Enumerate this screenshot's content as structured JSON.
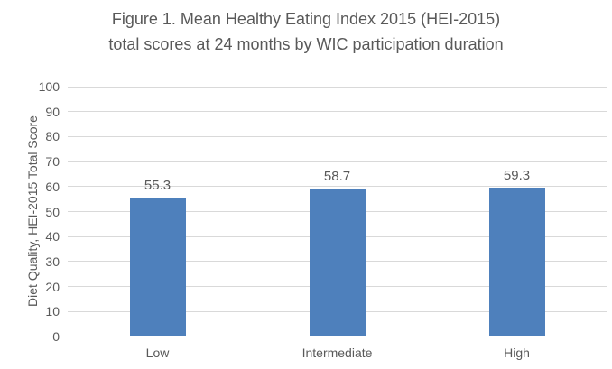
{
  "figure": {
    "title_line1": "Figure 1. Mean Healthy Eating Index 2015 (HEI-2015)",
    "title_line2": "total scores at 24 months by WIC participation duration"
  },
  "chart_data": {
    "type": "bar",
    "title": "Figure 1. Mean Healthy Eating Index 2015 (HEI-2015) total scores at 24 months by WIC participation duration",
    "categories": [
      "Low",
      "Intermediate",
      "High"
    ],
    "values": [
      55.3,
      58.7,
      59.3
    ],
    "value_labels": [
      "55.3",
      "58.7",
      "59.3"
    ],
    "xlabel": "",
    "ylabel": "Diet Quality, HEI-2015 Total Score",
    "ylim": [
      0,
      100
    ],
    "yticks": [
      0,
      10,
      20,
      30,
      40,
      50,
      60,
      70,
      80,
      90,
      100
    ],
    "grid": true,
    "legend": "none",
    "colors": {
      "bar": "#4E80BC",
      "text": "#595959",
      "gridline": "#D9D9D9",
      "axis_line": "#BFBFBF"
    }
  }
}
